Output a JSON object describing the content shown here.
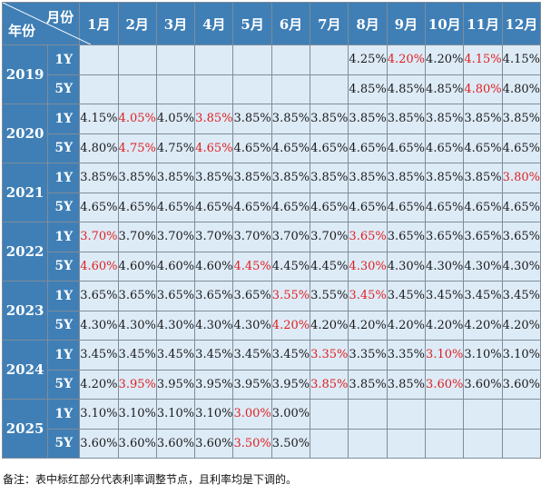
{
  "header": {
    "corner_month": "月份",
    "corner_year": "年份",
    "months": [
      "1月",
      "2月",
      "3月",
      "4月",
      "5月",
      "6月",
      "7月",
      "8月",
      "9月",
      "10月",
      "11月",
      "12月"
    ]
  },
  "years": [
    {
      "year": "2019",
      "rows": [
        {
          "term": "1Y",
          "values": [
            "",
            "",
            "",
            "",
            "",
            "",
            "",
            "4.25%",
            "4.20%",
            "4.20%",
            "4.15%",
            "4.15%"
          ],
          "adjusted": [
            8,
            10
          ]
        },
        {
          "term": "5Y",
          "values": [
            "",
            "",
            "",
            "",
            "",
            "",
            "",
            "4.85%",
            "4.85%",
            "4.85%",
            "4.80%",
            "4.80%"
          ],
          "adjusted": [
            10
          ]
        }
      ]
    },
    {
      "year": "2020",
      "rows": [
        {
          "term": "1Y",
          "values": [
            "4.15%",
            "4.05%",
            "4.05%",
            "3.85%",
            "3.85%",
            "3.85%",
            "3.85%",
            "3.85%",
            "3.85%",
            "3.85%",
            "3.85%",
            "3.85%"
          ],
          "adjusted": [
            1,
            3
          ]
        },
        {
          "term": "5Y",
          "values": [
            "4.80%",
            "4.75%",
            "4.75%",
            "4.65%",
            "4.65%",
            "4.65%",
            "4.65%",
            "4.65%",
            "4.65%",
            "4.65%",
            "4.65%",
            "4.65%"
          ],
          "adjusted": [
            1,
            3
          ]
        }
      ]
    },
    {
      "year": "2021",
      "rows": [
        {
          "term": "1Y",
          "values": [
            "3.85%",
            "3.85%",
            "3.85%",
            "3.85%",
            "3.85%",
            "3.85%",
            "3.85%",
            "3.85%",
            "3.85%",
            "3.85%",
            "3.85%",
            "3.80%"
          ],
          "adjusted": [
            11
          ]
        },
        {
          "term": "5Y",
          "values": [
            "4.65%",
            "4.65%",
            "4.65%",
            "4.65%",
            "4.65%",
            "4.65%",
            "4.65%",
            "4.65%",
            "4.65%",
            "4.65%",
            "4.65%",
            "4.65%"
          ],
          "adjusted": []
        }
      ]
    },
    {
      "year": "2022",
      "rows": [
        {
          "term": "1Y",
          "values": [
            "3.70%",
            "3.70%",
            "3.70%",
            "3.70%",
            "3.70%",
            "3.70%",
            "3.70%",
            "3.65%",
            "3.65%",
            "3.65%",
            "3.65%",
            "3.65%"
          ],
          "adjusted": [
            0,
            7
          ]
        },
        {
          "term": "5Y",
          "values": [
            "4.60%",
            "4.60%",
            "4.60%",
            "4.60%",
            "4.45%",
            "4.45%",
            "4.45%",
            "4.30%",
            "4.30%",
            "4.30%",
            "4.30%",
            "4.30%"
          ],
          "adjusted": [
            0,
            4,
            7
          ]
        }
      ]
    },
    {
      "year": "2023",
      "rows": [
        {
          "term": "1Y",
          "values": [
            "3.65%",
            "3.65%",
            "3.65%",
            "3.65%",
            "3.65%",
            "3.55%",
            "3.55%",
            "3.45%",
            "3.45%",
            "3.45%",
            "3.45%",
            "3.45%"
          ],
          "adjusted": [
            5,
            7
          ]
        },
        {
          "term": "5Y",
          "values": [
            "4.30%",
            "4.30%",
            "4.30%",
            "4.30%",
            "4.30%",
            "4.20%",
            "4.20%",
            "4.20%",
            "4.20%",
            "4.20%",
            "4.20%",
            "4.20%"
          ],
          "adjusted": [
            5
          ]
        }
      ]
    },
    {
      "year": "2024",
      "rows": [
        {
          "term": "1Y",
          "values": [
            "3.45%",
            "3.45%",
            "3.45%",
            "3.45%",
            "3.45%",
            "3.45%",
            "3.35%",
            "3.35%",
            "3.35%",
            "3.10%",
            "3.10%",
            "3.10%"
          ],
          "adjusted": [
            6,
            9
          ]
        },
        {
          "term": "5Y",
          "values": [
            "4.20%",
            "3.95%",
            "3.95%",
            "3.95%",
            "3.95%",
            "3.95%",
            "3.85%",
            "3.85%",
            "3.85%",
            "3.60%",
            "3.60%",
            "3.60%"
          ],
          "adjusted": [
            1,
            6,
            9
          ]
        }
      ]
    },
    {
      "year": "2025",
      "rows": [
        {
          "term": "1Y",
          "values": [
            "3.10%",
            "3.10%",
            "3.10%",
            "3.10%",
            "3.00%",
            "3.00%",
            "",
            "",
            "",
            "",
            "",
            ""
          ],
          "adjusted": [
            4
          ]
        },
        {
          "term": "5Y",
          "values": [
            "3.60%",
            "3.60%",
            "3.60%",
            "3.60%",
            "3.50%",
            "3.50%",
            "",
            "",
            "",
            "",
            "",
            ""
          ],
          "adjusted": [
            4
          ]
        }
      ]
    }
  ],
  "note": "备注：表中标红部分代表利率调整节点，且利率均是下调的。",
  "colors": {
    "header_bg": "#3f7fb6",
    "cell_bg": "#ddebf7",
    "adjusted_text": "#e02020",
    "normal_text": "#1a1a1a"
  }
}
